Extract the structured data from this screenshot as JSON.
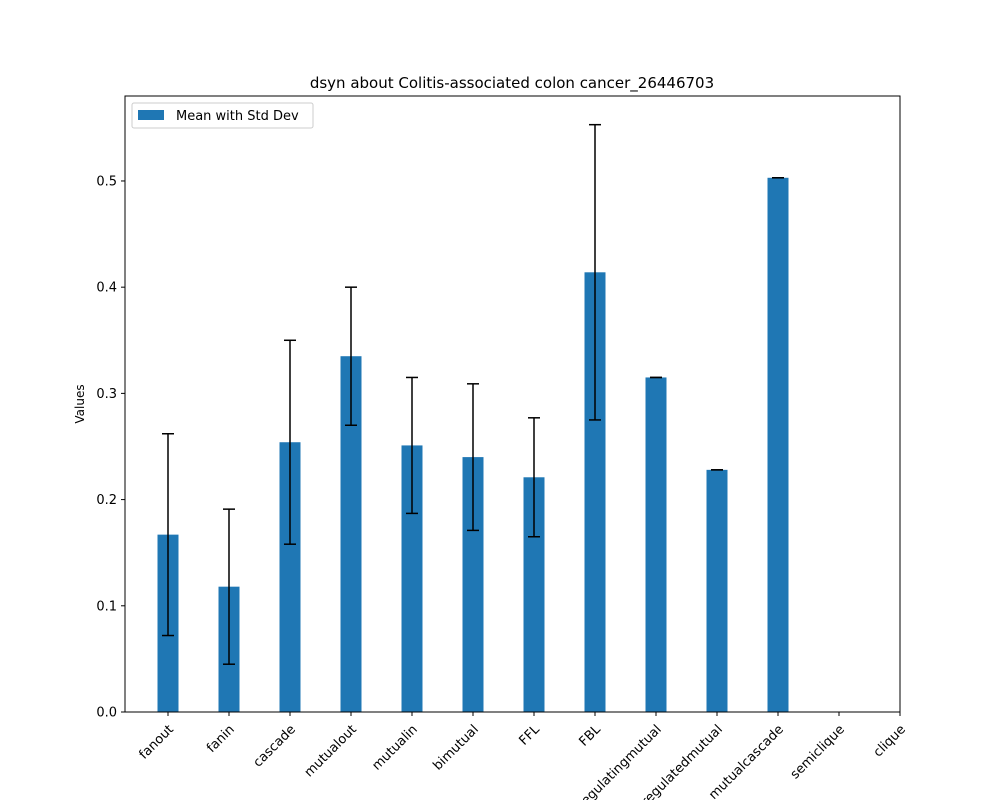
{
  "chart_data": {
    "type": "bar",
    "title": "dsyn about Colitis-associated colon cancer_26446703",
    "xlabel": "",
    "ylabel": "Values",
    "ylim": [
      0,
      0.58
    ],
    "yticks": [
      0.0,
      0.1,
      0.2,
      0.3,
      0.4,
      0.5
    ],
    "ytick_labels": [
      "0.0",
      "0.1",
      "0.2",
      "0.3",
      "0.4",
      "0.5"
    ],
    "grid": false,
    "legend": {
      "placement": "top-left",
      "entries": [
        "Mean with Std Dev"
      ]
    },
    "categories": [
      "fanout",
      "fanin",
      "cascade",
      "mutualout",
      "mutualin",
      "bimutual",
      "FFL",
      "FBL",
      "regulatingmutual",
      "regulatedmutual",
      "mutualcascade",
      "semiclique",
      "clique"
    ],
    "series": [
      {
        "name": "Mean with Std Dev",
        "color": "#1f77b4",
        "values": [
          0.167,
          0.118,
          0.254,
          0.335,
          0.251,
          0.24,
          0.221,
          0.414,
          0.315,
          0.228,
          0.503,
          0,
          0
        ],
        "std": [
          0.095,
          0.073,
          0.096,
          0.065,
          0.064,
          0.069,
          0.056,
          0.139,
          0,
          0,
          0,
          0,
          0
        ]
      }
    ]
  }
}
